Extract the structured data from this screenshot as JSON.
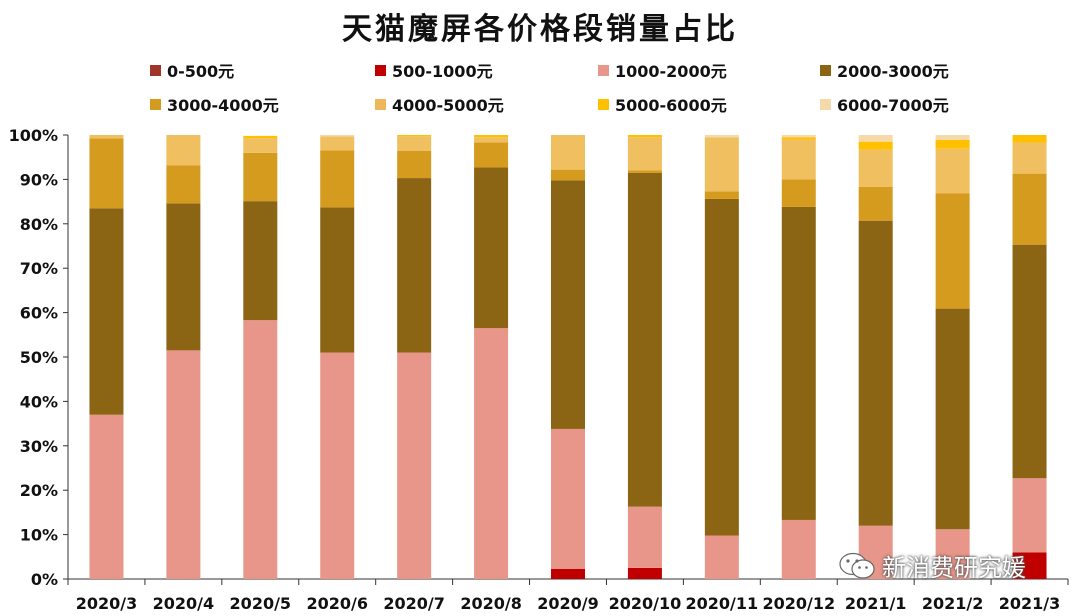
{
  "chart_data": {
    "type": "bar",
    "stacked": true,
    "title": "天猫魔屏各价格段销量占比",
    "categories": [
      "2020/3",
      "2020/4",
      "2020/5",
      "2020/6",
      "2020/7",
      "2020/8",
      "2020/9",
      "2020/10",
      "2020/11",
      "2020/12",
      "2021/1",
      "2021/2",
      "2021/3"
    ],
    "ylim": [
      0,
      100
    ],
    "yticks": [
      0,
      10,
      20,
      30,
      40,
      50,
      60,
      70,
      80,
      90,
      100
    ],
    "ytick_labels": [
      "0%",
      "10%",
      "20%",
      "30%",
      "40%",
      "50%",
      "60%",
      "70%",
      "80%",
      "90%",
      "100%"
    ],
    "xlabel": "",
    "ylabel": "",
    "legend_position": "top",
    "series": [
      {
        "name": "0-500元",
        "color": "#a0352a",
        "values": [
          0,
          0,
          0,
          0,
          0,
          0,
          0,
          0,
          0,
          0,
          0,
          0,
          0
        ]
      },
      {
        "name": "500-1000元",
        "color": "#c00000",
        "values": [
          0,
          0,
          0,
          0,
          0,
          0,
          2.3,
          2.5,
          0,
          0,
          0,
          0,
          6.0
        ]
      },
      {
        "name": "1000-2000元",
        "color": "#e8958a",
        "values": [
          37,
          51.5,
          58.3,
          51,
          51,
          56.5,
          31.5,
          13.8,
          9.8,
          13.3,
          12,
          11.2,
          16.7
        ]
      },
      {
        "name": "2000-3000元",
        "color": "#8b6513",
        "values": [
          46.5,
          33.1,
          26.8,
          32.7,
          39.3,
          36.2,
          56,
          75.2,
          75.8,
          70.5,
          68.7,
          49.7,
          52.6
        ]
      },
      {
        "name": "3000-4000元",
        "color": "#d59b1e",
        "values": [
          15.7,
          8.6,
          10.9,
          12.8,
          6.1,
          5.6,
          2.4,
          0.5,
          1.7,
          6.2,
          7.6,
          26,
          16
        ]
      },
      {
        "name": "4000-5000元",
        "color": "#f0c060",
        "values": [
          0.8,
          6.8,
          3.3,
          3.2,
          3.3,
          1.2,
          7.8,
          7.5,
          12.2,
          9,
          8.4,
          10,
          7
        ],
        "legend_color": "#eeb85a"
      },
      {
        "name": "5000-6000元",
        "color": "#ffc000",
        "values": [
          0,
          0,
          0.5,
          0,
          0.3,
          0.5,
          0,
          0.5,
          0,
          0.5,
          1.8,
          2,
          1.7
        ]
      },
      {
        "name": "6000-7000元",
        "color": "#f6d9a8",
        "values": [
          0,
          0,
          0,
          0.3,
          0,
          0,
          0,
          0,
          0.5,
          0.5,
          1.5,
          1.1,
          0
        ]
      }
    ]
  },
  "watermark": {
    "text": "新消费研究媛",
    "icon": "wechat-icon"
  }
}
